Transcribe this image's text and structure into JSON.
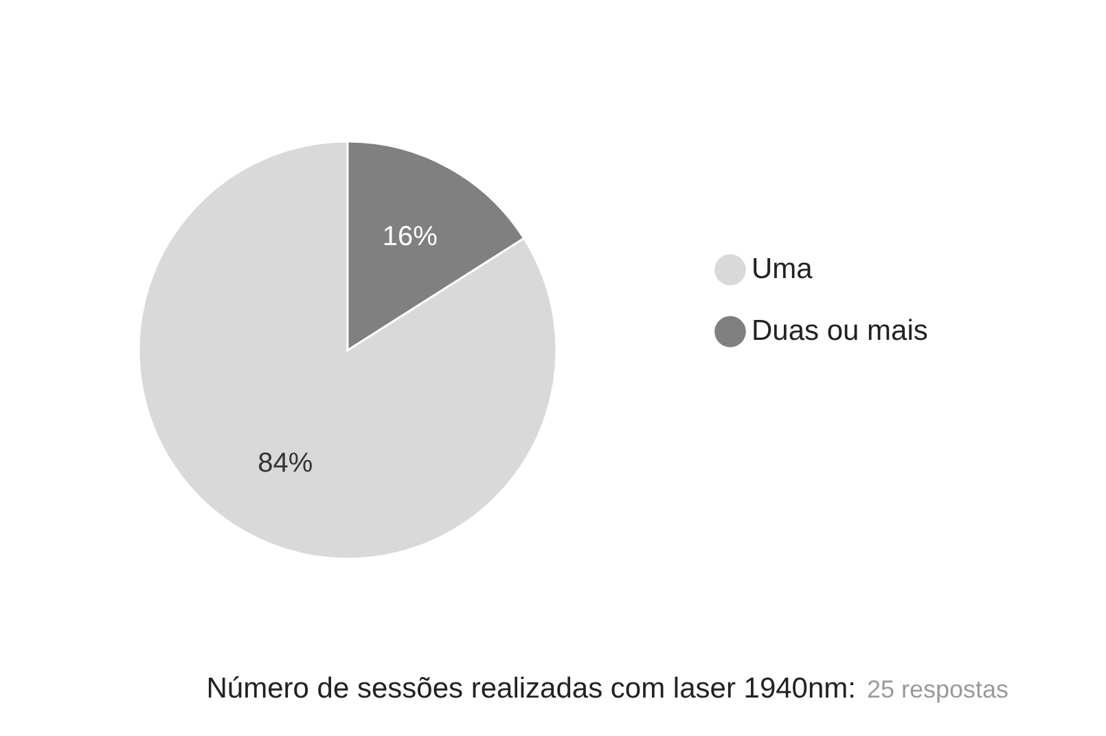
{
  "chart_data": {
    "type": "pie",
    "categories": [
      "Uma",
      "Duas ou mais"
    ],
    "values": [
      84,
      16
    ],
    "colors": [
      "#d9d9d9",
      "#808080"
    ],
    "value_labels": [
      "84%",
      "16%"
    ],
    "legend": "right",
    "title": "Número de sessões realizadas com laser 1940nm:",
    "annotations": [
      "25 respostas"
    ]
  }
}
